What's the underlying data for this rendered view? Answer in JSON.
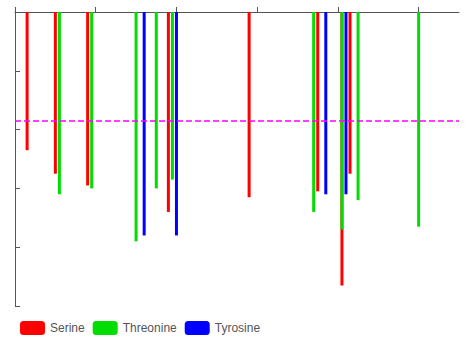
{
  "chart_data": {
    "type": "bar",
    "series": [
      {
        "name": "Serine",
        "color": "red",
        "x": [
          3,
          10,
          18,
          38,
          58,
          75,
          81,
          83
        ],
        "values": [
          0.47,
          0.55,
          0.59,
          0.68,
          0.63,
          0.61,
          0.93,
          0.55
        ]
      },
      {
        "name": "Threonine",
        "color": "#00dd00",
        "x": [
          11,
          19,
          30,
          35,
          39,
          74,
          81,
          85,
          100
        ],
        "values": [
          0.62,
          0.6,
          0.78,
          0.6,
          0.57,
          0.68,
          0.74,
          0.64,
          0.73
        ]
      },
      {
        "name": "Tyrosine",
        "color": "blue",
        "x": [
          32,
          40,
          77,
          82
        ],
        "values": [
          0.76,
          0.76,
          0.62,
          0.62
        ]
      }
    ],
    "threshold": {
      "value": 0.37,
      "color": "#ff00ff",
      "line_style": "dashed"
    },
    "xlim": [
      0,
      110
    ],
    "xticks": [
      0,
      20,
      40,
      60,
      80,
      100
    ],
    "ylim": [
      1.0,
      0.0
    ],
    "yticks": [
      0,
      0.2,
      0.4,
      0.6,
      0.8,
      1.0
    ],
    "tick_labels": false,
    "grid": false,
    "legend": "lower left"
  }
}
